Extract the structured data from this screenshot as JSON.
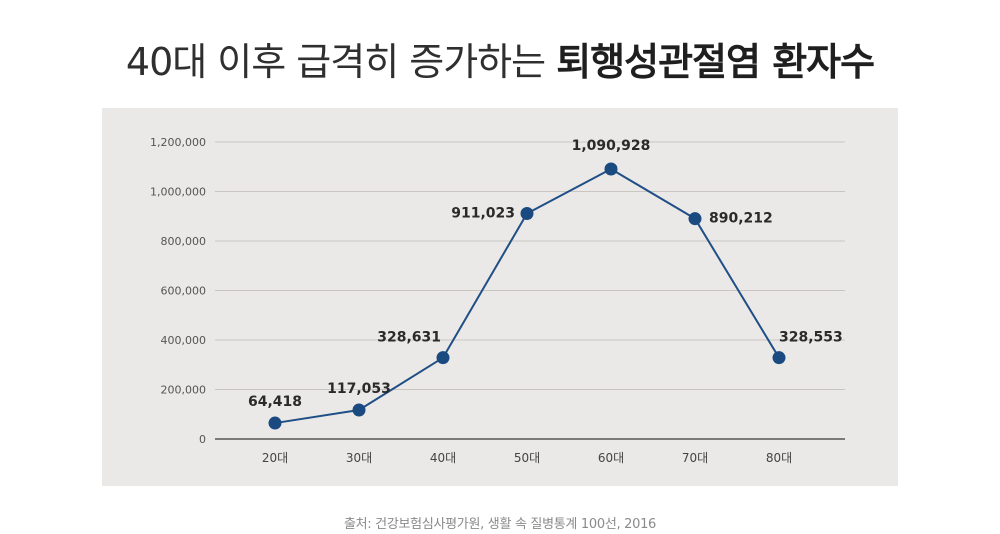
{
  "title": {
    "normal": "40대 이후 급격히 증가하는",
    "bold": "퇴행성관절염 환자수"
  },
  "source": "출처: 건강보험심사평가원, 생활 속 질병통계 100선, 2016",
  "colors": {
    "line": "#1f4f86",
    "marker": "#1a4a80",
    "panel": "#ebe9e7",
    "grid": "#c9c6c2",
    "axis": "#555555",
    "text": "#333333"
  },
  "chart_data": {
    "type": "line",
    "title": "40대 이후 급격히 증가하는 퇴행성관절염 환자수",
    "xlabel": "",
    "ylabel": "",
    "categories": [
      "20대",
      "30대",
      "40대",
      "50대",
      "60대",
      "70대",
      "80대"
    ],
    "values": [
      64418,
      117053,
      328631,
      911023,
      1090928,
      890212,
      328553
    ],
    "value_labels": [
      "64,418",
      "117,053",
      "328,631",
      "911,023",
      "1,090,928",
      "890,212",
      "328,553"
    ],
    "ylim": [
      0,
      1200000
    ],
    "yticks": [
      0,
      200000,
      400000,
      600000,
      800000,
      1000000,
      1200000
    ],
    "ytick_labels": [
      "0",
      "200,000",
      "400,000",
      "600,000",
      "800,000",
      "1,000,000",
      "1,200,000"
    ],
    "grid": true,
    "legend": "none"
  }
}
